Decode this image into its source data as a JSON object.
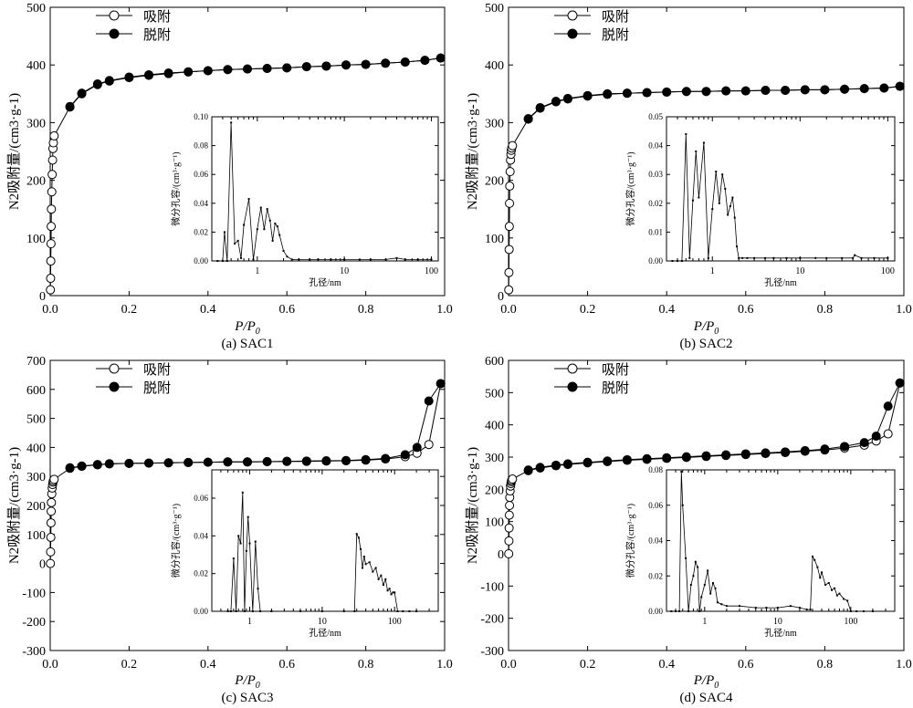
{
  "legend": {
    "adsorption": "吸附",
    "desorption": "脱附"
  },
  "chart_data": [
    {
      "type": "line",
      "caption": "(a) SAC1",
      "xlabel": "P/P0",
      "xlabel_main": "P/P",
      "xlabel_sub": "0",
      "ylabel": "N2吸附量/(cm3·g-1)",
      "xlim": [
        0,
        1.0
      ],
      "ylim": [
        0,
        500
      ],
      "xticks": [
        0,
        0.2,
        0.4,
        0.6,
        0.8,
        1.0
      ],
      "xtick_labels": [
        "0.0",
        "0.2",
        "0.4",
        "0.6",
        "0.8",
        "1.0"
      ],
      "yticks": [
        0,
        100,
        200,
        300,
        400,
        500
      ],
      "series": [
        {
          "name": "吸附",
          "marker": "open-circle",
          "x": [
            0.0005,
            0.001,
            0.0015,
            0.002,
            0.0025,
            0.003,
            0.004,
            0.005,
            0.006,
            0.007,
            0.008,
            0.01,
            0.05,
            0.08,
            0.12,
            0.15,
            0.2,
            0.25,
            0.3,
            0.35,
            0.4,
            0.45,
            0.5,
            0.55,
            0.6,
            0.65,
            0.7,
            0.75,
            0.8,
            0.85,
            0.9,
            0.95,
            0.99
          ],
          "y": [
            10,
            30,
            60,
            90,
            120,
            150,
            180,
            210,
            235,
            255,
            265,
            277,
            327,
            350,
            366,
            372,
            378,
            382,
            385,
            388,
            390,
            392,
            393,
            394,
            395,
            397,
            398,
            400,
            401,
            403,
            405,
            408,
            412
          ]
        },
        {
          "name": "脱附",
          "marker": "filled-circle",
          "x": [
            0.99,
            0.95,
            0.9,
            0.85,
            0.8,
            0.75,
            0.7,
            0.65,
            0.6,
            0.55,
            0.5,
            0.45,
            0.4,
            0.35,
            0.3,
            0.25,
            0.2,
            0.15,
            0.12,
            0.08,
            0.05
          ],
          "y": [
            412,
            408,
            405,
            403,
            401,
            400,
            398,
            397,
            395,
            394,
            393,
            392,
            390,
            388,
            386,
            383,
            379,
            373,
            367,
            351,
            328
          ]
        }
      ],
      "inset": {
        "type": "line",
        "xscale": "log",
        "xlabel": "孔径/nm",
        "ylabel": "微分孔容/(cm³·g⁻¹)",
        "xlim": [
          0.3,
          120
        ],
        "ylim": [
          0,
          0.1
        ],
        "xticks": [
          1,
          10,
          100
        ],
        "xtick_labels": [
          "1",
          "10",
          "100"
        ],
        "yticks": [
          0,
          0.02,
          0.04,
          0.06,
          0.08,
          0.1
        ],
        "ytick_labels": [
          "0.00",
          "0.02",
          "0.04",
          "0.06",
          "0.08",
          "0.10"
        ],
        "x": [
          0.35,
          0.4,
          0.42,
          0.45,
          0.5,
          0.55,
          0.6,
          0.65,
          0.7,
          0.8,
          0.9,
          1.0,
          1.1,
          1.2,
          1.3,
          1.4,
          1.5,
          1.6,
          1.7,
          1.8,
          2.0,
          2.2,
          2.5,
          3,
          4,
          5,
          7,
          10,
          15,
          20,
          30,
          40,
          50,
          70,
          100
        ],
        "y": [
          0,
          0,
          0.02,
          0,
          0.096,
          0.012,
          0.014,
          0.002,
          0.025,
          0.043,
          0.001,
          0.022,
          0.037,
          0.022,
          0.036,
          0.028,
          0.014,
          0.026,
          0.024,
          0.018,
          0.007,
          0.003,
          0.001,
          0.001,
          0.001,
          0.001,
          0.001,
          0.001,
          0.001,
          0.001,
          0.001,
          0.002,
          0.001,
          0.001,
          0.001
        ]
      }
    },
    {
      "type": "line",
      "caption": "(b) SAC2",
      "xlabel": "P/P0",
      "xlabel_main": "P/P",
      "xlabel_sub": "0",
      "ylabel": "N2吸附量/(cm3·g-1)",
      "xlim": [
        0,
        1.0
      ],
      "ylim": [
        0,
        500
      ],
      "xticks": [
        0,
        0.2,
        0.4,
        0.6,
        0.8,
        1.0
      ],
      "xtick_labels": [
        "0.0",
        "0.2",
        "0.4",
        "0.6",
        "0.8",
        "1.0"
      ],
      "yticks": [
        0,
        100,
        200,
        300,
        400,
        500
      ],
      "series": [
        {
          "name": "吸附",
          "marker": "open-circle",
          "x": [
            0.0005,
            0.001,
            0.0015,
            0.002,
            0.0025,
            0.003,
            0.004,
            0.005,
            0.006,
            0.007,
            0.008,
            0.01,
            0.05,
            0.08,
            0.12,
            0.15,
            0.2,
            0.25,
            0.3,
            0.35,
            0.4,
            0.45,
            0.5,
            0.55,
            0.6,
            0.65,
            0.7,
            0.75,
            0.8,
            0.85,
            0.9,
            0.95,
            0.99
          ],
          "y": [
            10,
            40,
            80,
            120,
            160,
            190,
            215,
            235,
            245,
            252,
            256,
            260,
            306,
            325,
            336,
            341,
            346,
            349,
            351,
            352,
            353,
            354,
            354,
            355,
            355,
            356,
            356,
            357,
            357,
            358,
            359,
            360,
            363
          ]
        },
        {
          "name": "脱附",
          "marker": "filled-circle",
          "x": [
            0.99,
            0.95,
            0.9,
            0.85,
            0.8,
            0.75,
            0.7,
            0.65,
            0.6,
            0.55,
            0.5,
            0.45,
            0.4,
            0.35,
            0.3,
            0.25,
            0.2,
            0.15,
            0.12,
            0.08,
            0.05
          ],
          "y": [
            363,
            360,
            359,
            358,
            357,
            357,
            356,
            356,
            355,
            355,
            354,
            354,
            353,
            352,
            351,
            350,
            347,
            342,
            337,
            326,
            307
          ]
        }
      ],
      "inset": {
        "type": "line",
        "xscale": "log",
        "xlabel": "孔径/nm",
        "ylabel": "微分孔容/(cm³·g⁻¹)",
        "xlim": [
          0.3,
          120
        ],
        "ylim": [
          0,
          0.05
        ],
        "xticks": [
          1,
          10,
          100
        ],
        "xtick_labels": [
          "1",
          "10",
          "100"
        ],
        "yticks": [
          0,
          0.01,
          0.02,
          0.03,
          0.04,
          0.05
        ],
        "ytick_labels": [
          "0.00",
          "0.01",
          "0.02",
          "0.03",
          "0.04",
          "0.05"
        ],
        "x": [
          0.35,
          0.4,
          0.45,
          0.5,
          0.55,
          0.6,
          0.65,
          0.7,
          0.8,
          0.9,
          1.0,
          1.1,
          1.2,
          1.3,
          1.4,
          1.5,
          1.6,
          1.7,
          1.8,
          1.9,
          2.0,
          2.2,
          2.5,
          3,
          4,
          5,
          7,
          10,
          15,
          20,
          30,
          40,
          42,
          50,
          70,
          100
        ],
        "y": [
          0,
          0,
          0,
          0.044,
          0.001,
          0.021,
          0.038,
          0.022,
          0.041,
          0.001,
          0.018,
          0.031,
          0.02,
          0.03,
          0.025,
          0.016,
          0.019,
          0.022,
          0.015,
          0.005,
          0.001,
          0.001,
          0.001,
          0.001,
          0.001,
          0.001,
          0.001,
          0.001,
          0.001,
          0.001,
          0.001,
          0.001,
          0.002,
          0.001,
          0.001,
          0.001
        ]
      }
    },
    {
      "type": "line",
      "caption": "(c) SAC3",
      "xlabel": "P/P0",
      "xlabel_main": "P/P",
      "xlabel_sub": "0",
      "ylabel": "N2吸附量/(cm3·g-1)",
      "xlim": [
        0,
        1.0
      ],
      "ylim": [
        -300,
        700
      ],
      "xticks": [
        0,
        0.2,
        0.4,
        0.6,
        0.8,
        1.0
      ],
      "xtick_labels": [
        "0.0",
        "0.2",
        "0.4",
        "0.6",
        "0.8",
        "1.0"
      ],
      "yticks": [
        -300,
        -200,
        -100,
        0,
        100,
        200,
        300,
        400,
        500,
        600,
        700
      ],
      "series": [
        {
          "name": "吸附",
          "marker": "open-circle",
          "x": [
            0.0005,
            0.001,
            0.0015,
            0.002,
            0.0025,
            0.003,
            0.004,
            0.005,
            0.006,
            0.007,
            0.008,
            0.01,
            0.05,
            0.08,
            0.12,
            0.15,
            0.2,
            0.25,
            0.3,
            0.35,
            0.4,
            0.45,
            0.5,
            0.55,
            0.6,
            0.65,
            0.7,
            0.75,
            0.8,
            0.85,
            0.9,
            0.93,
            0.96,
            0.99
          ],
          "y": [
            0,
            40,
            90,
            140,
            180,
            210,
            240,
            260,
            272,
            280,
            285,
            290,
            328,
            335,
            340,
            343,
            345,
            346,
            347,
            348,
            349,
            350,
            350,
            351,
            352,
            352,
            353,
            354,
            356,
            360,
            368,
            380,
            410,
            620
          ]
        },
        {
          "name": "脱附",
          "marker": "filled-circle",
          "x": [
            0.99,
            0.96,
            0.93,
            0.9,
            0.85,
            0.8,
            0.75,
            0.7,
            0.65,
            0.6,
            0.55,
            0.5,
            0.45,
            0.4,
            0.35,
            0.3,
            0.25,
            0.2,
            0.15,
            0.12,
            0.08,
            0.05
          ],
          "y": [
            620,
            560,
            400,
            375,
            362,
            358,
            355,
            354,
            353,
            352,
            351,
            350,
            350,
            349,
            348,
            347,
            346,
            345,
            344,
            341,
            336,
            330
          ]
        }
      ],
      "inset": {
        "type": "line",
        "xscale": "log",
        "xlabel": "孔径/nm",
        "ylabel": "微分孔容/(cm³·g⁻¹)",
        "xlim": [
          0.3,
          400
        ],
        "ylim": [
          0,
          0.075
        ],
        "xticks": [
          1,
          10,
          100
        ],
        "xtick_labels": [
          "1",
          "10",
          "100"
        ],
        "yticks": [
          0,
          0.02,
          0.04,
          0.06
        ],
        "ytick_labels": [
          "0.00",
          "0.02",
          "0.04",
          "0.06"
        ],
        "x": [
          0.5,
          0.55,
          0.6,
          0.65,
          0.7,
          0.75,
          0.8,
          0.85,
          0.9,
          0.95,
          1.0,
          1.1,
          1.2,
          1.3,
          1.4,
          2,
          5,
          10,
          20,
          28,
          30,
          32,
          34,
          36,
          38,
          40,
          45,
          50,
          55,
          60,
          65,
          70,
          75,
          80,
          85,
          90,
          95,
          100,
          110,
          130,
          160,
          200
        ],
        "y": [
          0,
          0,
          0.028,
          0,
          0.04,
          0.036,
          0.063,
          0,
          0.032,
          0.05,
          0.036,
          0,
          0.037,
          0.012,
          0,
          0,
          0,
          0,
          0,
          0,
          0.041,
          0.039,
          0.033,
          0.023,
          0.029,
          0.025,
          0.026,
          0.021,
          0.023,
          0.017,
          0.019,
          0.014,
          0.017,
          0.011,
          0.012,
          0.009,
          0.01,
          0.01,
          0,
          0,
          0,
          0
        ]
      }
    },
    {
      "type": "line",
      "caption": "(d) SAC4",
      "xlabel": "P/P0",
      "xlabel_main": "P/P",
      "xlabel_sub": "0",
      "ylabel": "N2吸附量/(cm3·g-1)",
      "xlim": [
        0,
        1.0
      ],
      "ylim": [
        -300,
        600
      ],
      "xticks": [
        0,
        0.2,
        0.4,
        0.6,
        0.8,
        1.0
      ],
      "xtick_labels": [
        "0.0",
        "0.2",
        "0.4",
        "0.6",
        "0.8",
        "1.0"
      ],
      "yticks": [
        -300,
        -200,
        -100,
        0,
        100,
        200,
        300,
        400,
        500,
        600
      ],
      "series": [
        {
          "name": "吸附",
          "marker": "open-circle",
          "x": [
            0.0005,
            0.001,
            0.0015,
            0.002,
            0.0025,
            0.003,
            0.004,
            0.005,
            0.006,
            0.007,
            0.008,
            0.01,
            0.05,
            0.08,
            0.12,
            0.15,
            0.2,
            0.25,
            0.3,
            0.35,
            0.4,
            0.45,
            0.5,
            0.55,
            0.6,
            0.65,
            0.7,
            0.75,
            0.8,
            0.85,
            0.9,
            0.93,
            0.96,
            0.99
          ],
          "y": [
            0,
            40,
            80,
            120,
            150,
            175,
            195,
            210,
            218,
            224,
            228,
            232,
            258,
            266,
            273,
            277,
            282,
            286,
            290,
            293,
            296,
            299,
            302,
            305,
            308,
            311,
            314,
            318,
            322,
            328,
            337,
            350,
            372,
            530
          ]
        },
        {
          "name": "脱附",
          "marker": "filled-circle",
          "x": [
            0.99,
            0.96,
            0.93,
            0.9,
            0.85,
            0.8,
            0.75,
            0.7,
            0.65,
            0.6,
            0.55,
            0.5,
            0.45,
            0.4,
            0.35,
            0.3,
            0.25,
            0.2,
            0.15,
            0.12,
            0.08,
            0.05
          ],
          "y": [
            530,
            458,
            365,
            345,
            333,
            325,
            320,
            316,
            313,
            310,
            307,
            304,
            301,
            298,
            295,
            292,
            288,
            284,
            279,
            275,
            268,
            260
          ]
        }
      ],
      "inset": {
        "type": "line",
        "xscale": "log",
        "xlabel": "孔径/nm",
        "ylabel": "微分孔容/(cm³·g⁻¹)",
        "xlim": [
          0.3,
          400
        ],
        "ylim": [
          0,
          0.08
        ],
        "xticks": [
          1,
          10,
          100
        ],
        "xtick_labels": [
          "1",
          "10",
          "100"
        ],
        "yticks": [
          0,
          0.02,
          0.04,
          0.06,
          0.08
        ],
        "ytick_labels": [
          "0.00",
          "0.02",
          "0.04",
          "0.06",
          "0.08"
        ],
        "x": [
          0.35,
          0.4,
          0.45,
          0.48,
          0.5,
          0.55,
          0.6,
          0.65,
          0.7,
          0.75,
          0.8,
          0.85,
          0.9,
          1.0,
          1.1,
          1.2,
          1.3,
          1.4,
          1.5,
          1.7,
          2,
          3,
          5,
          7,
          10,
          15,
          20,
          25,
          28,
          30,
          32,
          35,
          38,
          40,
          45,
          50,
          55,
          60,
          65,
          70,
          80,
          90,
          100,
          120,
          150,
          200
        ],
        "y": [
          0,
          0,
          0,
          0.079,
          0.06,
          0.03,
          0,
          0.015,
          0.02,
          0.028,
          0.025,
          0,
          0.008,
          0.015,
          0.023,
          0.01,
          0.016,
          0.013,
          0.005,
          0.004,
          0.003,
          0.003,
          0.002,
          0.002,
          0.002,
          0.003,
          0.002,
          0.001,
          0.001,
          0.031,
          0.029,
          0.025,
          0.019,
          0.022,
          0.015,
          0.016,
          0.012,
          0.013,
          0.009,
          0.01,
          0.007,
          0.006,
          0,
          0,
          0,
          0
        ]
      }
    }
  ]
}
